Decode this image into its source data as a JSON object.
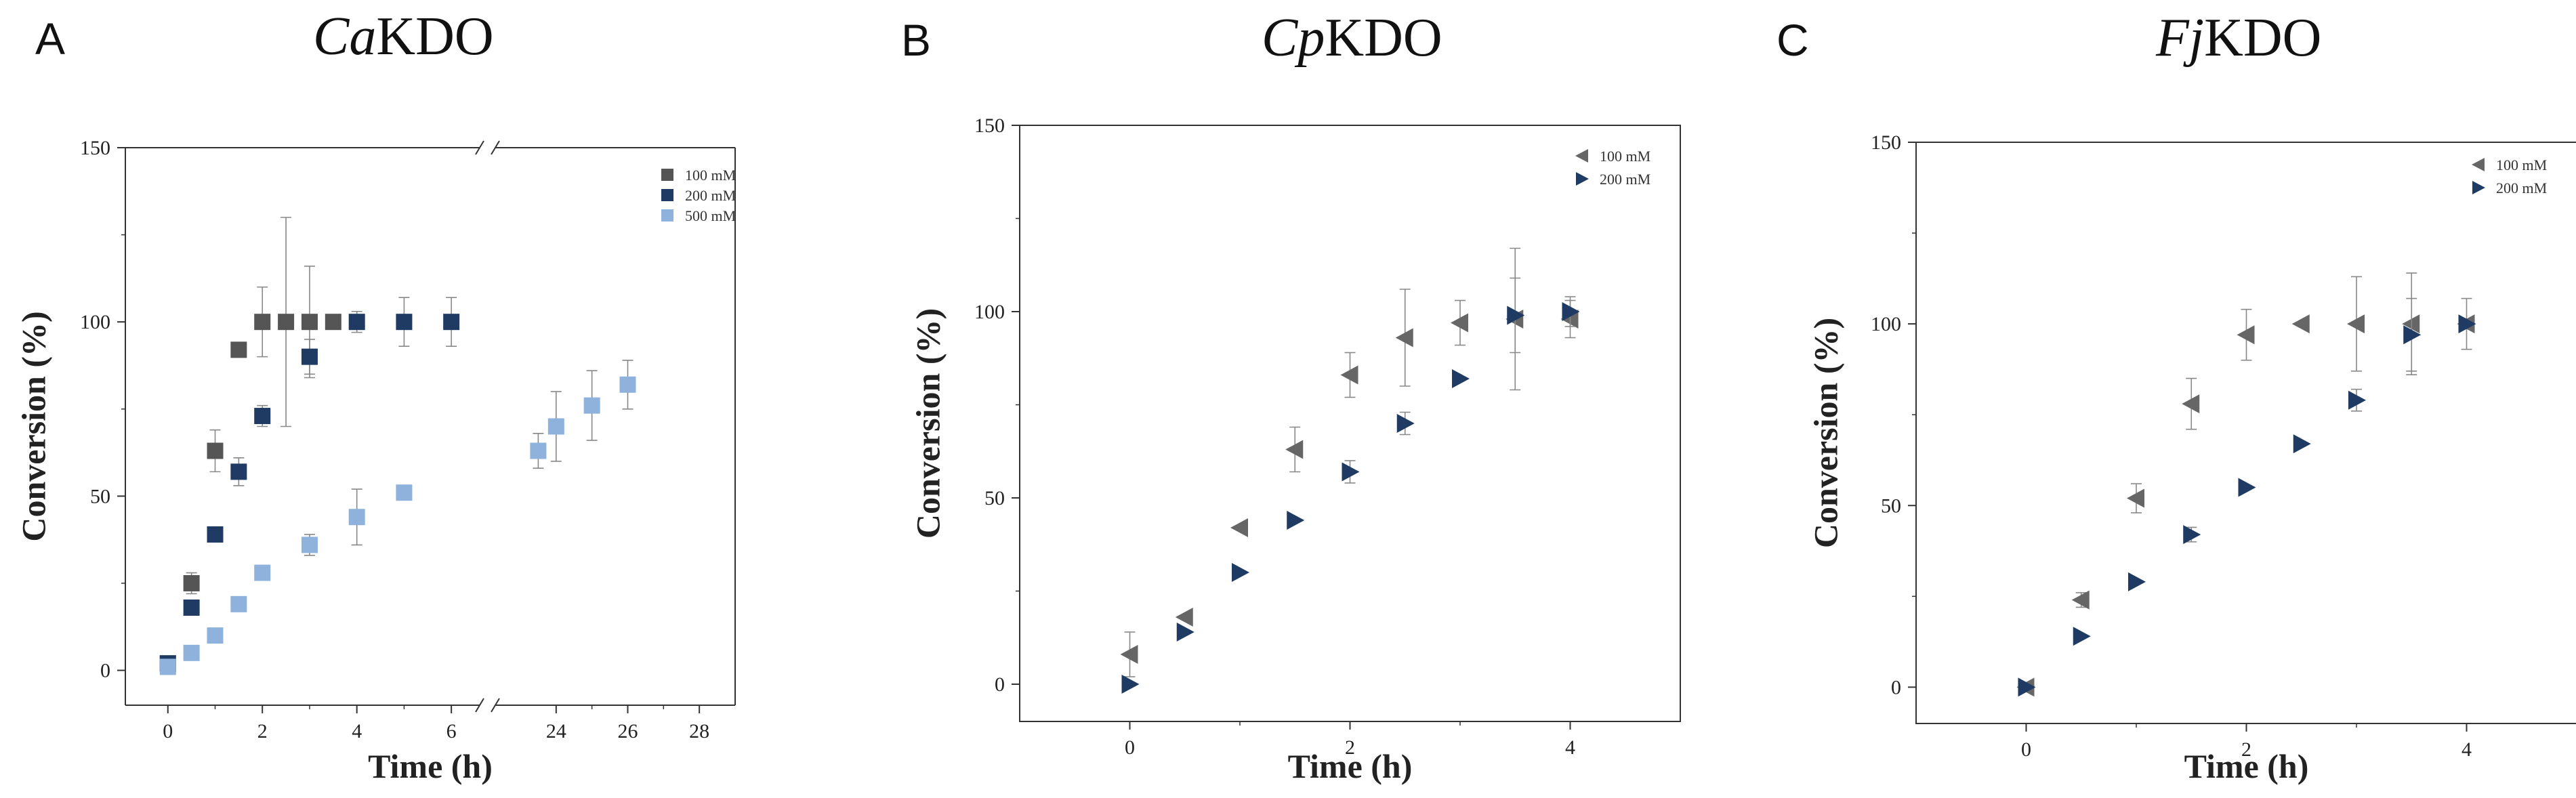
{
  "chart_data": [
    {
      "type": "scatter",
      "panel": "A",
      "title_italic": "Ca",
      "title_rest": "KDO",
      "xlabel": "Time (h)",
      "ylabel": "Conversion (%)",
      "ylim": [
        -10,
        150
      ],
      "yticks": [
        0,
        50,
        100,
        150
      ],
      "x_axis_break": {
        "before_max": 6.5,
        "after_min": 22.5
      },
      "xticks": [
        0,
        2,
        4,
        6,
        24,
        26,
        28
      ],
      "series": [
        {
          "name": "100 mM",
          "marker": "square",
          "color": "#555555",
          "points": [
            [
              0,
              2,
              0
            ],
            [
              0.5,
              25,
              3
            ],
            [
              1,
              63,
              6
            ],
            [
              1.5,
              92,
              2
            ],
            [
              2,
              100,
              10
            ],
            [
              2.5,
              100,
              30
            ],
            [
              3,
              100,
              16
            ],
            [
              3.5,
              100,
              0
            ]
          ]
        },
        {
          "name": "200 mM",
          "marker": "square",
          "color": "#1f3b63",
          "points": [
            [
              0,
              2,
              0
            ],
            [
              0.5,
              18,
              2
            ],
            [
              1,
              39,
              0
            ],
            [
              1.5,
              57,
              4
            ],
            [
              2,
              73,
              3
            ],
            [
              3,
              90,
              5
            ],
            [
              4,
              100,
              3
            ],
            [
              5,
              100,
              7
            ],
            [
              6,
              100,
              7
            ]
          ]
        },
        {
          "name": "500 mM",
          "marker": "square",
          "color": "#8eb2dc",
          "points": [
            [
              0,
              1,
              0
            ],
            [
              0.5,
              5,
              0
            ],
            [
              1,
              10,
              0
            ],
            [
              1.5,
              19,
              0
            ],
            [
              2,
              28,
              0
            ],
            [
              3,
              36,
              3
            ],
            [
              4,
              44,
              8
            ],
            [
              5,
              51,
              0
            ],
            [
              23.5,
              63,
              5
            ],
            [
              24,
              70,
              10
            ],
            [
              25,
              76,
              10
            ],
            [
              26,
              82,
              7
            ]
          ]
        }
      ],
      "legend": "top-right"
    },
    {
      "type": "scatter",
      "panel": "B",
      "title_italic": "Cp",
      "title_rest": "KDO",
      "xlabel": "Time (h)",
      "ylabel": "Conversion (%)",
      "xlim": [
        -1,
        5
      ],
      "ylim": [
        -10,
        150
      ],
      "xticks": [
        0,
        2,
        4
      ],
      "yticks": [
        0,
        50,
        100,
        150
      ],
      "series": [
        {
          "name": "100 mM",
          "marker": "triangle-left",
          "color": "#666666",
          "points": [
            [
              0,
              8,
              6
            ],
            [
              0.5,
              18,
              0
            ],
            [
              1,
              42,
              0
            ],
            [
              1.5,
              63,
              6
            ],
            [
              2,
              83,
              6
            ],
            [
              2.5,
              93,
              13
            ],
            [
              3,
              97,
              6
            ],
            [
              3.5,
              98,
              19
            ],
            [
              4,
              98,
              5
            ]
          ]
        },
        {
          "name": "200 mM",
          "marker": "triangle-right",
          "color": "#1f3b63",
          "points": [
            [
              0,
              0,
              0
            ],
            [
              0.5,
              14,
              0
            ],
            [
              1,
              30,
              0
            ],
            [
              1.5,
              44,
              0
            ],
            [
              2,
              57,
              3
            ],
            [
              2.5,
              70,
              3
            ],
            [
              3,
              82,
              0
            ],
            [
              3.5,
              99,
              10
            ],
            [
              4,
              100,
              4
            ]
          ]
        }
      ],
      "legend": "top-right"
    },
    {
      "type": "scatter",
      "panel": "C",
      "title_italic": "Fj",
      "title_rest": "KDO",
      "xlabel": "Time (h)",
      "ylabel": "Conversion (%)",
      "xlim": [
        -1,
        5
      ],
      "ylim": [
        -10,
        150
      ],
      "xticks": [
        0,
        2,
        4
      ],
      "yticks": [
        0,
        50,
        100,
        150
      ],
      "series": [
        {
          "name": "100 mM",
          "marker": "triangle-left",
          "color": "#666666",
          "points": [
            [
              0,
              0,
              0
            ],
            [
              0.5,
              24,
              2
            ],
            [
              1,
              52,
              4
            ],
            [
              1.5,
              78,
              7
            ],
            [
              2,
              97,
              7
            ],
            [
              2.5,
              100,
              0
            ],
            [
              3,
              100,
              13
            ],
            [
              3.5,
              100,
              14
            ],
            [
              4,
              100,
              7
            ]
          ]
        },
        {
          "name": "200 mM",
          "marker": "triangle-right",
          "color": "#1f3b63",
          "points": [
            [
              0,
              0,
              0
            ],
            [
              0.5,
              14,
              0
            ],
            [
              1,
              29,
              0
            ],
            [
              1.5,
              42,
              2
            ],
            [
              2,
              55,
              0
            ],
            [
              2.5,
              67,
              0
            ],
            [
              3,
              79,
              3
            ],
            [
              3.5,
              97,
              10
            ],
            [
              4,
              100,
              0
            ]
          ]
        }
      ],
      "legend": "top-right"
    }
  ]
}
